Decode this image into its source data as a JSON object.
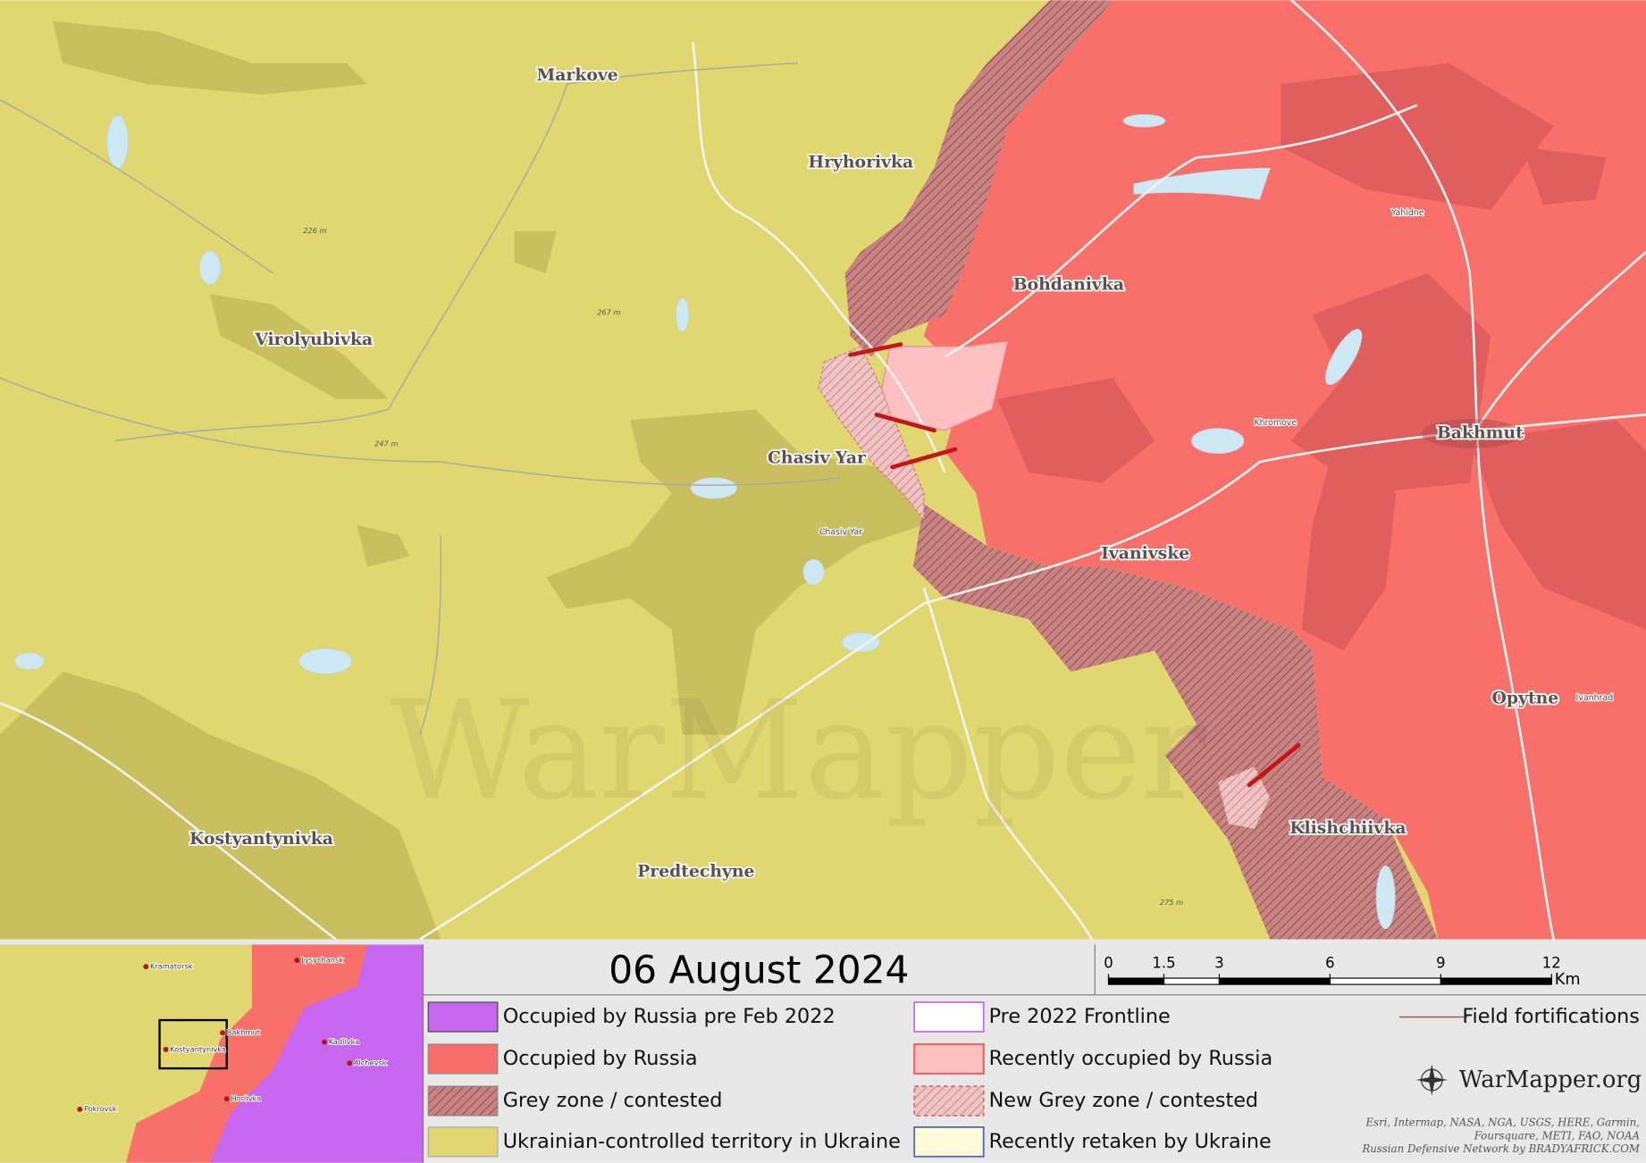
{
  "map": {
    "places": [
      "Markove",
      "Hryhorivka",
      "Bohdanivka",
      "Virolyubivka",
      "Chasiv Yar",
      "Bakhmut",
      "Ivanivske",
      "Opytne",
      "Klishchiivka",
      "Kostyantynivka",
      "Predtechyne"
    ],
    "minor_labels": [
      "Chasiv Yar",
      "Khromove",
      "Yahidne",
      "Ivanhrad"
    ],
    "elevations": [
      "226 m",
      "267 m",
      "247 m",
      "275 m"
    ],
    "watermark": "WarMapper"
  },
  "inset": {
    "labels": [
      "Lysychansk",
      "Kramatorsk",
      "Bakhmut",
      "Kostyantynivka",
      "Kadiivka",
      "Alchevsk",
      "Horlivka",
      "Pokrovsk"
    ]
  },
  "legend": {
    "date": "06 August 2024",
    "items": [
      "Occupied by Russia pre Feb 2022",
      "Occupied by Russia",
      "Grey zone / contested",
      "Ukrainian-controlled territory in Ukraine",
      "Pre 2022 Frontline",
      "Recently occupied by Russia",
      "New Grey zone / contested",
      "Recently retaken by Ukraine",
      "Field fortifications"
    ]
  },
  "scale": {
    "ticks": [
      0,
      1.5,
      3,
      6,
      9,
      12
    ],
    "unit": "Km"
  },
  "brand": "WarMapper.org",
  "attribution": [
    "Esri, Intermap, NASA, NGA, USGS, HERE, Garmin,",
    "Foursquare, METI, FAO, NOAA",
    "Russian Defensive Network by BRADYAFRICK.COM"
  ]
}
